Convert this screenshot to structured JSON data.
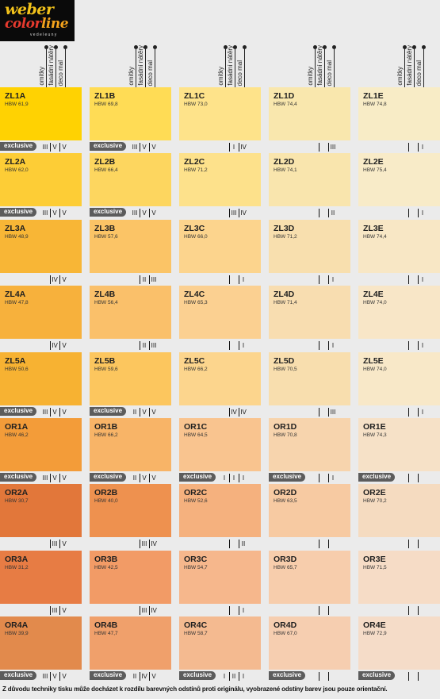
{
  "logo": {
    "line1": "weber",
    "line2a": "color",
    "line2b": "line",
    "line3": "vedeleuny"
  },
  "column_labels": [
    "omítky",
    "fasádní nátěry",
    "deco mal"
  ],
  "rows": [
    [
      {
        "code": "ZL1A",
        "hbw": "HBW 61,9",
        "color": "#ffd202",
        "exclusive": "exclusive",
        "marks": [
          "III",
          "V",
          "V"
        ]
      },
      {
        "code": "ZL1B",
        "hbw": "HBW 69,8",
        "color": "#ffdc55",
        "exclusive": "exclusive",
        "marks": [
          "III",
          "V",
          "V"
        ]
      },
      {
        "code": "ZL1C",
        "hbw": "HBW 73,0",
        "color": "#fee38a",
        "exclusive": "",
        "marks": [
          "",
          "I",
          "IV"
        ]
      },
      {
        "code": "ZL1D",
        "hbw": "HBW 74,4",
        "color": "#f9e7ad",
        "exclusive": "",
        "marks": [
          "",
          "",
          "III"
        ]
      },
      {
        "code": "ZL1E",
        "hbw": "HBW 74,8",
        "color": "#f8ecc6",
        "exclusive": "",
        "marks": [
          "",
          "",
          "I"
        ]
      }
    ],
    [
      {
        "code": "ZL2A",
        "hbw": "HBW 62,0",
        "color": "#fdcd36",
        "exclusive": "exclusive",
        "marks": [
          "III",
          "V",
          "V"
        ]
      },
      {
        "code": "ZL2B",
        "hbw": "HBW 66,4",
        "color": "#fdd65f",
        "exclusive": "exclusive",
        "marks": [
          "III",
          "V",
          "V"
        ]
      },
      {
        "code": "ZL2C",
        "hbw": "HBW 71,2",
        "color": "#fde18b",
        "exclusive": "",
        "marks": [
          "",
          "III",
          "IV"
        ]
      },
      {
        "code": "ZL2D",
        "hbw": "HBW 74,1",
        "color": "#f9e5ad",
        "exclusive": "",
        "marks": [
          "",
          "",
          "II"
        ]
      },
      {
        "code": "ZL2E",
        "hbw": "HBW 75,4",
        "color": "#f8ebc8",
        "exclusive": "",
        "marks": [
          "",
          "",
          "I"
        ]
      }
    ],
    [
      {
        "code": "ZL3A",
        "hbw": "HBW 48,9",
        "color": "#f8b636",
        "exclusive": "",
        "marks": [
          "",
          "IV",
          "V"
        ]
      },
      {
        "code": "ZL3B",
        "hbw": "HBW 57,6",
        "color": "#fbc466",
        "exclusive": "",
        "marks": [
          "",
          "II",
          "III"
        ]
      },
      {
        "code": "ZL3C",
        "hbw": "HBW 66,0",
        "color": "#fcd48d",
        "exclusive": "",
        "marks": [
          "",
          "",
          "I"
        ]
      },
      {
        "code": "ZL3D",
        "hbw": "HBW 71,2",
        "color": "#f8dfae",
        "exclusive": "",
        "marks": [
          "",
          "",
          "I"
        ]
      },
      {
        "code": "ZL3E",
        "hbw": "HBW 74,4",
        "color": "#f8e7c5",
        "exclusive": "",
        "marks": [
          "",
          "",
          "I"
        ]
      }
    ],
    [
      {
        "code": "ZL4A",
        "hbw": "HBW 47,8",
        "color": "#f7b13c",
        "exclusive": "",
        "marks": [
          "",
          "IV",
          "V"
        ]
      },
      {
        "code": "ZL4B",
        "hbw": "HBW 56,4",
        "color": "#fac06a",
        "exclusive": "",
        "marks": [
          "",
          "II",
          "III"
        ]
      },
      {
        "code": "ZL4C",
        "hbw": "HBW 65,3",
        "color": "#fbd091",
        "exclusive": "",
        "marks": [
          "",
          "",
          "I"
        ]
      },
      {
        "code": "ZL4D",
        "hbw": "HBW 71,4",
        "color": "#f8ddb0",
        "exclusive": "",
        "marks": [
          "",
          "",
          "I"
        ]
      },
      {
        "code": "ZL4E",
        "hbw": "HBW 74,0",
        "color": "#f8e6c7",
        "exclusive": "",
        "marks": [
          "",
          "",
          "I"
        ]
      }
    ],
    [
      {
        "code": "ZL5A",
        "hbw": "HBW 50,6",
        "color": "#f7b232",
        "exclusive": "exclusive",
        "marks": [
          "III",
          "V",
          "V"
        ]
      },
      {
        "code": "ZL5B",
        "hbw": "HBW 59,6",
        "color": "#fcc65e",
        "exclusive": "exclusive",
        "marks": [
          "II",
          "V",
          "V"
        ]
      },
      {
        "code": "ZL5C",
        "hbw": "HBW 66,2",
        "color": "#fcd58d",
        "exclusive": "",
        "marks": [
          "",
          "IV",
          "IV"
        ]
      },
      {
        "code": "ZL5D",
        "hbw": "HBW 70,5",
        "color": "#f8deae",
        "exclusive": "",
        "marks": [
          "",
          "",
          "III"
        ]
      },
      {
        "code": "ZL5E",
        "hbw": "HBW 74,0",
        "color": "#f8e8c8",
        "exclusive": "",
        "marks": [
          "",
          "",
          "I"
        ]
      }
    ],
    [
      {
        "code": "OR1A",
        "hbw": "HBW 46,2",
        "color": "#f39c39",
        "exclusive": "exclusive",
        "marks": [
          "III",
          "V",
          "V"
        ]
      },
      {
        "code": "OR1B",
        "hbw": "HBW 66,2",
        "color": "#f8b467",
        "exclusive": "exclusive",
        "marks": [
          "II",
          "V",
          "V"
        ]
      },
      {
        "code": "OR1C",
        "hbw": "HBW 64,5",
        "color": "#f9c48f",
        "exclusive": "exclusive",
        "marks": [
          "I",
          "I",
          "I"
        ]
      },
      {
        "code": "OR1D",
        "hbw": "HBW 70,8",
        "color": "#f7d4ad",
        "exclusive": "exclusive",
        "marks": [
          "",
          "",
          "I"
        ]
      },
      {
        "code": "OR1E",
        "hbw": "HBW 74,3",
        "color": "#f6e1c7",
        "exclusive": "exclusive",
        "marks": [
          "",
          "",
          ""
        ]
      }
    ],
    [
      {
        "code": "OR2A",
        "hbw": "HBW 30,7",
        "color": "#e2773a",
        "exclusive": "",
        "marks": [
          "",
          "III",
          "V"
        ]
      },
      {
        "code": "OR2B",
        "hbw": "HBW 40,0",
        "color": "#ee914f",
        "exclusive": "",
        "marks": [
          "",
          "III",
          "IV"
        ]
      },
      {
        "code": "OR2C",
        "hbw": "HBW 52,6",
        "color": "#f5b17e",
        "exclusive": "",
        "marks": [
          "",
          "",
          "II"
        ]
      },
      {
        "code": "OR2D",
        "hbw": "HBW 63,5",
        "color": "#f7caa2",
        "exclusive": "",
        "marks": [
          "",
          "",
          ""
        ]
      },
      {
        "code": "OR2E",
        "hbw": "HBW 70,2",
        "color": "#f5dbc0",
        "exclusive": "",
        "marks": [
          "",
          "",
          ""
        ]
      }
    ],
    [
      {
        "code": "OR3A",
        "hbw": "HBW 31,2",
        "color": "#e77c44",
        "exclusive": "",
        "marks": [
          "",
          "III",
          "V"
        ]
      },
      {
        "code": "OR3B",
        "hbw": "HBW 42,5",
        "color": "#f29b66",
        "exclusive": "",
        "marks": [
          "",
          "III",
          "IV"
        ]
      },
      {
        "code": "OR3C",
        "hbw": "HBW 54,7",
        "color": "#f6b78c",
        "exclusive": "",
        "marks": [
          "",
          "",
          "I"
        ]
      },
      {
        "code": "OR3D",
        "hbw": "HBW 65,7",
        "color": "#f7cdac",
        "exclusive": "",
        "marks": [
          "",
          "",
          ""
        ]
      },
      {
        "code": "OR3E",
        "hbw": "HBW 71,5",
        "color": "#f6dcc6",
        "exclusive": "",
        "marks": [
          "",
          "",
          ""
        ]
      }
    ],
    [
      {
        "code": "OR4A",
        "hbw": "HBW 39,9",
        "color": "#e28a4c",
        "exclusive": "exclusive",
        "marks": [
          "III",
          "V",
          "V"
        ]
      },
      {
        "code": "OR4B",
        "hbw": "HBW 47,7",
        "color": "#f0a06b",
        "exclusive": "exclusive",
        "marks": [
          "II",
          "IV",
          "V"
        ]
      },
      {
        "code": "OR4C",
        "hbw": "HBW 58,7",
        "color": "#f4ba90",
        "exclusive": "exclusive",
        "marks": [
          "I",
          "II",
          "I"
        ]
      },
      {
        "code": "OR4D",
        "hbw": "HBW 67,0",
        "color": "#f6ceb0",
        "exclusive": "exclusive",
        "marks": [
          "",
          "",
          ""
        ]
      },
      {
        "code": "OR4E",
        "hbw": "HBW 72,9",
        "color": "#f5dcc8",
        "exclusive": "exclusive",
        "marks": [
          "",
          "",
          ""
        ]
      }
    ]
  ],
  "footnote": "Z důvodu techniky tisku může docházet k rozdílu barevných odstínů proti originálu, vyobrazené odstíny barev jsou pouze orientační."
}
